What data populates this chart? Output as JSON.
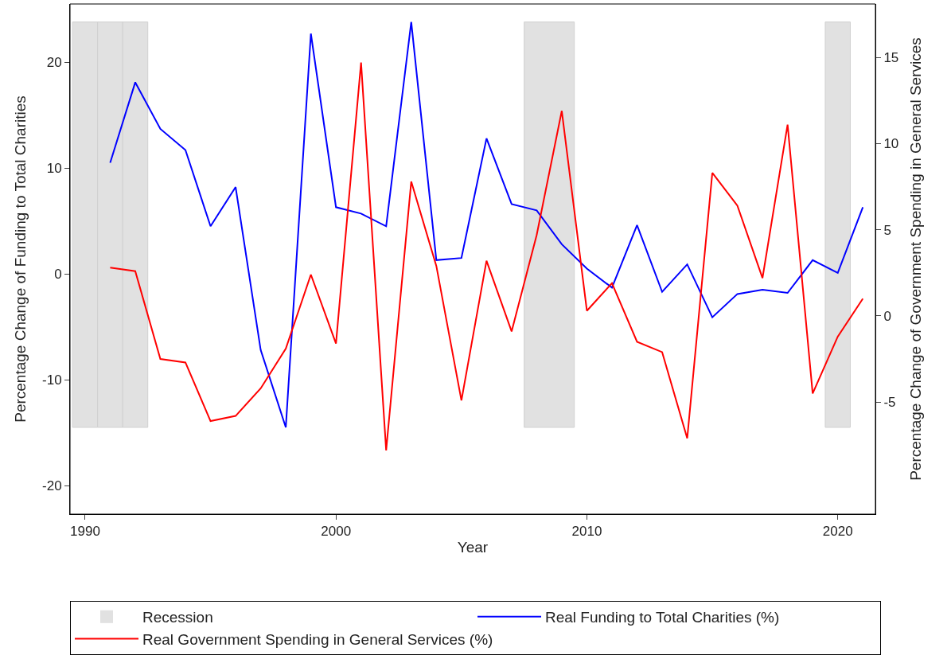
{
  "chart_data": {
    "type": "line",
    "xlabel": "Year",
    "ylabel": "Percentage Change of Funding to Total Charities",
    "y2label": "Percentage Change of Government Spending in General Services",
    "x": [
      1991,
      1992,
      1993,
      1994,
      1995,
      1996,
      1997,
      1998,
      1999,
      2000,
      2001,
      2002,
      2003,
      2004,
      2005,
      2006,
      2007,
      2008,
      2009,
      2010,
      2011,
      2012,
      2013,
      2014,
      2015,
      2016,
      2017,
      2018,
      2019,
      2020,
      2021
    ],
    "series": [
      {
        "name": "Real Funding to Total Charities (%)",
        "color": "#0000ff",
        "values": [
          10.5,
          18.1,
          13.7,
          11.7,
          4.5,
          8.2,
          -7.2,
          -14.5,
          22.7,
          6.3,
          5.7,
          4.5,
          23.8,
          1.3,
          1.5,
          12.8,
          6.6,
          6.0,
          2.8,
          0.5,
          -1.3,
          4.6,
          -1.7,
          0.9,
          -4.1,
          -1.9,
          -1.5,
          -1.8,
          1.3,
          0.1,
          6.3
        ]
      },
      {
        "name": "Real Government Spending in General Services (%)",
        "color": "#ff0000",
        "axis": "y2",
        "values": [
          2.8,
          2.6,
          -2.5,
          -2.7,
          -6.1,
          -5.8,
          -4.2,
          -1.9,
          2.4,
          -1.6,
          14.7,
          -7.8,
          7.8,
          2.9,
          -4.9,
          3.2,
          -0.9,
          4.7,
          11.9,
          0.3,
          1.9,
          -1.5,
          -2.1,
          -7.1,
          8.3,
          6.4,
          2.2,
          11.1,
          -4.5,
          -1.2,
          1.0
        ]
      }
    ],
    "bands": [
      {
        "axis": "x",
        "from": 1989.5,
        "to": 1990.5,
        "label": "Recession",
        "color": "#e1e1e1"
      },
      {
        "axis": "x",
        "from": 1990.5,
        "to": 1991.5,
        "color": "#e1e1e1"
      },
      {
        "axis": "x",
        "from": 1991.5,
        "to": 1992.5,
        "color": "#e1e1e1"
      },
      {
        "axis": "x",
        "from": 2007.5,
        "to": 2009.5,
        "color": "#e1e1e1"
      },
      {
        "axis": "x",
        "from": 2019.5,
        "to": 2020.5,
        "color": "#e1e1e1"
      }
    ],
    "xlim": [
      1989.4,
      2021.5
    ],
    "xticks": [
      1990,
      2000,
      2010,
      2020
    ],
    "ylim": [
      -22.7,
      25.5
    ],
    "yticks": [
      -20,
      -10,
      0,
      10,
      20
    ],
    "y2lim": [
      -11.5,
      18.1
    ],
    "y2ticks": [
      -5,
      0,
      5,
      10,
      15
    ],
    "grid": false,
    "legend": "bottom",
    "line_style": "solid",
    "marker": "none"
  }
}
